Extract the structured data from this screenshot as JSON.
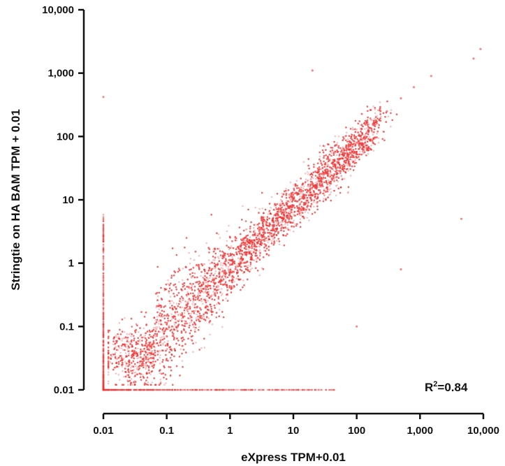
{
  "chart_data": {
    "type": "scatter",
    "title": "",
    "xlabel": "eXpress TPM+0.01",
    "ylabel": "Stringtie on HA BAM TPM  + 0.01",
    "x_scale": "log10",
    "y_scale": "log10",
    "xlim": [
      0.01,
      10000
    ],
    "ylim": [
      0.01,
      10000
    ],
    "x_ticks": [
      0.01,
      0.1,
      1,
      10,
      100,
      1000,
      10000
    ],
    "x_tick_labels": [
      "0.01",
      "0.1",
      "1",
      "10",
      "100",
      "1,000",
      "10,000"
    ],
    "y_ticks": [
      0.01,
      0.1,
      1,
      10,
      100,
      1000,
      10000
    ],
    "y_tick_labels": [
      "0.01",
      "0.1",
      "1",
      "10",
      "100",
      "1,000",
      "10,000"
    ],
    "grid": false,
    "legend": "none",
    "annotation": {
      "prefix": "R",
      "superscript": "2",
      "suffix": "=0.84"
    },
    "point_color": "#f03c3c",
    "series": [
      {
        "values_note": "dense cloud of transcripts along diagonal; representative sampled points below",
        "points": [
          [
            0.02,
            0.03
          ],
          [
            0.03,
            0.04
          ],
          [
            0.05,
            0.05
          ],
          [
            0.08,
            0.06
          ],
          [
            0.1,
            0.07
          ],
          [
            0.15,
            0.1
          ],
          [
            0.2,
            0.12
          ],
          [
            0.3,
            0.2
          ],
          [
            0.5,
            0.3
          ],
          [
            0.7,
            0.5
          ],
          [
            1,
            0.7
          ],
          [
            1.5,
            1
          ],
          [
            2,
            1.5
          ],
          [
            3,
            2
          ],
          [
            5,
            4
          ],
          [
            7,
            5
          ],
          [
            10,
            8
          ],
          [
            15,
            12
          ],
          [
            20,
            18
          ],
          [
            30,
            25
          ],
          [
            50,
            40
          ],
          [
            70,
            55
          ],
          [
            100,
            80
          ],
          [
            150,
            120
          ],
          [
            200,
            180
          ],
          [
            300,
            250
          ],
          [
            500,
            400
          ],
          [
            800,
            600
          ],
          [
            1500,
            900
          ],
          [
            9000,
            2400
          ],
          [
            7000,
            1700
          ],
          [
            20,
            1100
          ],
          [
            0.01,
            420
          ],
          [
            4500,
            5
          ],
          [
            500,
            0.8
          ],
          [
            100,
            0.1
          ]
        ]
      }
    ]
  }
}
